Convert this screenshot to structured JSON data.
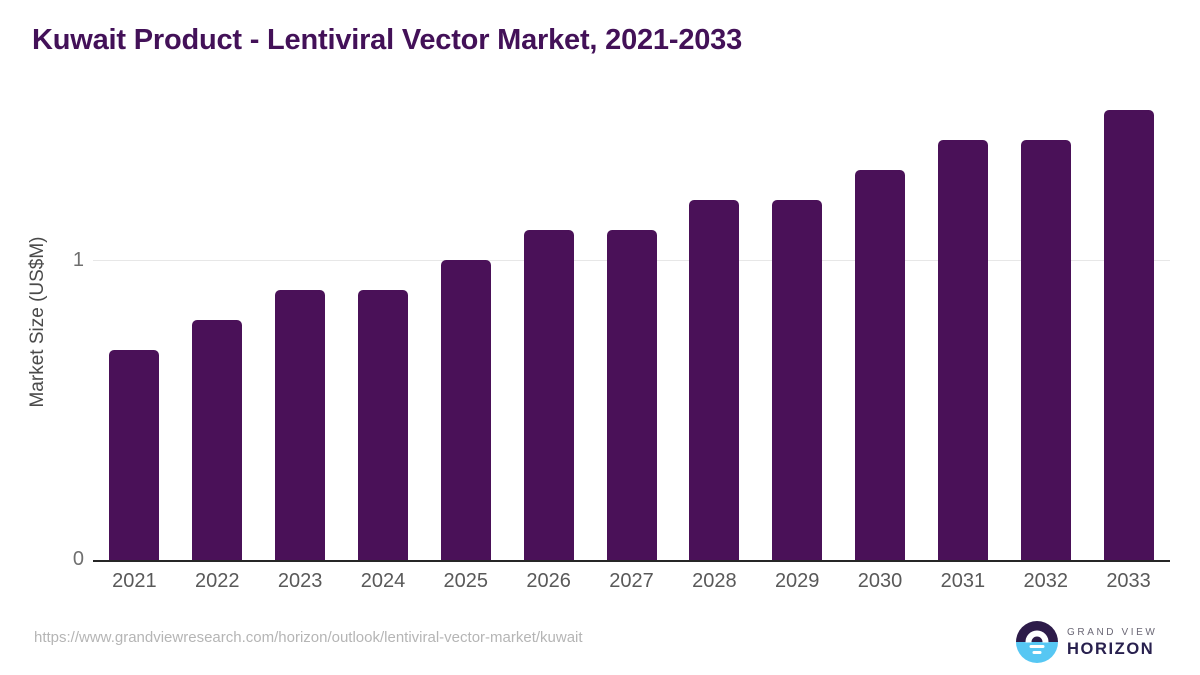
{
  "title": "Kuwait Product - Lentiviral Vector Market, 2021-2033",
  "chart_data": {
    "type": "bar",
    "title": "Kuwait Product - Lentiviral Vector Market, 2021-2033",
    "categories": [
      "2021",
      "2022",
      "2023",
      "2024",
      "2025",
      "2026",
      "2027",
      "2028",
      "2029",
      "2030",
      "2031",
      "2032",
      "2033"
    ],
    "values": [
      0.7,
      0.8,
      0.9,
      0.9,
      1.0,
      1.1,
      1.1,
      1.2,
      1.2,
      1.3,
      1.4,
      1.4,
      1.5
    ],
    "xlabel": "",
    "ylabel": "Market Size (US$M)",
    "ylim": [
      0,
      1.55
    ],
    "yticks": [
      {
        "value": 0,
        "label": "0"
      },
      {
        "value": 1,
        "label": "1"
      }
    ],
    "grid": "single horizontal gridline at y=1",
    "legend": "none",
    "bar_color": "#4a1158"
  },
  "colors": {
    "title": "#431158",
    "bar": "#4a1158",
    "axis_line": "#262626",
    "gridline": "#e7e7e7",
    "tick_label": "#6f6f6f",
    "x_label": "#595959",
    "url_text": "#b5b5b5",
    "logo_sky": "#2d1b49",
    "logo_sea": "#57c7f3",
    "logo_brand": "#28204e"
  },
  "footer": {
    "source_url": "https://www.grandviewresearch.com/horizon/outlook/lentiviral-vector-market/kuwait",
    "logo": {
      "icon": "horizon-sun-icon",
      "brand_top": "GRAND VIEW",
      "brand_bottom": "HORIZON"
    }
  }
}
